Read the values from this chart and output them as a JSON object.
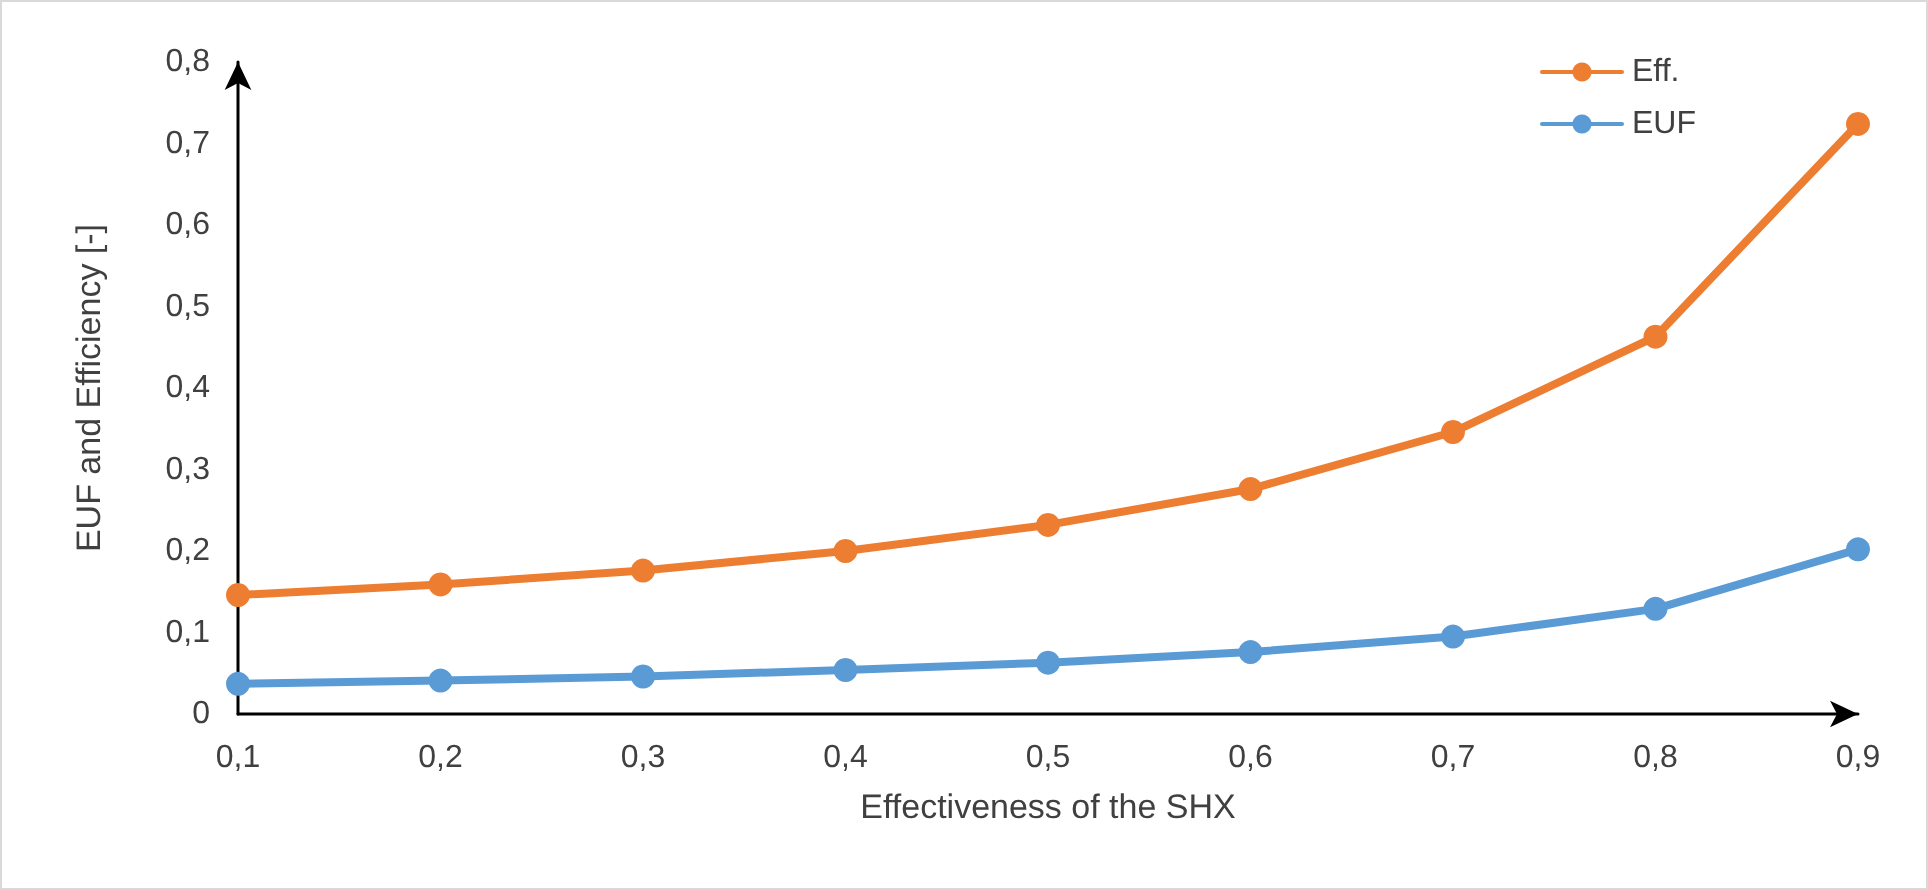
{
  "chart_data": {
    "type": "line",
    "xlabel": "Effectiveness of the SHX",
    "ylabel": "EUF and Efficiency [-]",
    "x": [
      0.1,
      0.2,
      0.3,
      0.4,
      0.5,
      0.6,
      0.7,
      0.8,
      0.9
    ],
    "series": [
      {
        "name": "Eff.",
        "color": "#ed7d31",
        "values": [
          0.146,
          0.159,
          0.176,
          0.2,
          0.232,
          0.276,
          0.346,
          0.463,
          0.724
        ]
      },
      {
        "name": "EUF",
        "color": "#5b9bd5",
        "values": [
          0.037,
          0.041,
          0.046,
          0.054,
          0.063,
          0.076,
          0.095,
          0.129,
          0.202
        ]
      }
    ],
    "xlim": [
      0.1,
      0.9
    ],
    "xticks": [
      {
        "value": 0.1,
        "label": "0,1"
      },
      {
        "value": 0.2,
        "label": "0,2"
      },
      {
        "value": 0.3,
        "label": "0,3"
      },
      {
        "value": 0.4,
        "label": "0,4"
      },
      {
        "value": 0.5,
        "label": "0,5"
      },
      {
        "value": 0.6,
        "label": "0,6"
      },
      {
        "value": 0.7,
        "label": "0,7"
      },
      {
        "value": 0.8,
        "label": "0,8"
      },
      {
        "value": 0.9,
        "label": "0,9"
      }
    ],
    "ylim": [
      0,
      0.8
    ],
    "yticks": [
      0,
      {
        "value": 0.1,
        "label": "0,1"
      },
      {
        "value": 0.2,
        "label": "0,2"
      },
      {
        "value": 0.3,
        "label": "0,3"
      },
      {
        "value": 0.4,
        "label": "0,4"
      },
      {
        "value": 0.5,
        "label": "0,5"
      },
      {
        "value": 0.6,
        "label": "0,6"
      },
      {
        "value": 0.7,
        "label": "0,7"
      },
      {
        "value": 0.8,
        "label": "0,8"
      }
    ],
    "grid": false,
    "legend": "top right",
    "marker": "circle",
    "line_style": "solid"
  }
}
